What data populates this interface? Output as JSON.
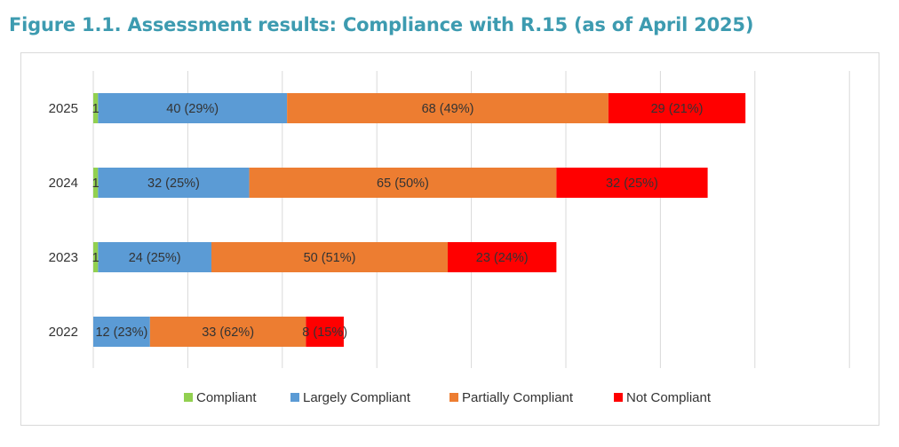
{
  "header": {
    "title": "Figure 1.1. Assessment results: Compliance with R.15 (as of April 2025)"
  },
  "chart_data": {
    "type": "bar",
    "orientation": "horizontal",
    "stacked": true,
    "title": "Figure 1.1. Assessment results: Compliance with R.15 (as of April 2025)",
    "categories": [
      "2025",
      "2024",
      "2023",
      "2022"
    ],
    "series": [
      {
        "name": "Compliant",
        "color": "#92d050",
        "values": [
          1,
          1,
          1,
          0
        ],
        "labels": [
          "1",
          "1",
          "1",
          ""
        ]
      },
      {
        "name": "Largely Compliant",
        "color": "#5b9bd5",
        "values": [
          40,
          32,
          24,
          12
        ],
        "labels": [
          "40 (29%)",
          "32 (25%)",
          "24 (25%)",
          "12 (23%)"
        ]
      },
      {
        "name": "Partially Compliant",
        "color": "#ed7d31",
        "values": [
          68,
          65,
          50,
          33
        ],
        "labels": [
          "68 (49%)",
          "65 (50%)",
          "50 (51%)",
          "33 (62%)"
        ]
      },
      {
        "name": "Not Compliant",
        "color": "#ff0000",
        "values": [
          29,
          32,
          23,
          8
        ],
        "labels": [
          "29 (21%)",
          "32 (25%)",
          "23 (24%)",
          "8 (15%)"
        ]
      }
    ],
    "xlim": [
      0,
      160
    ],
    "grid": true,
    "legend_position": "bottom"
  }
}
